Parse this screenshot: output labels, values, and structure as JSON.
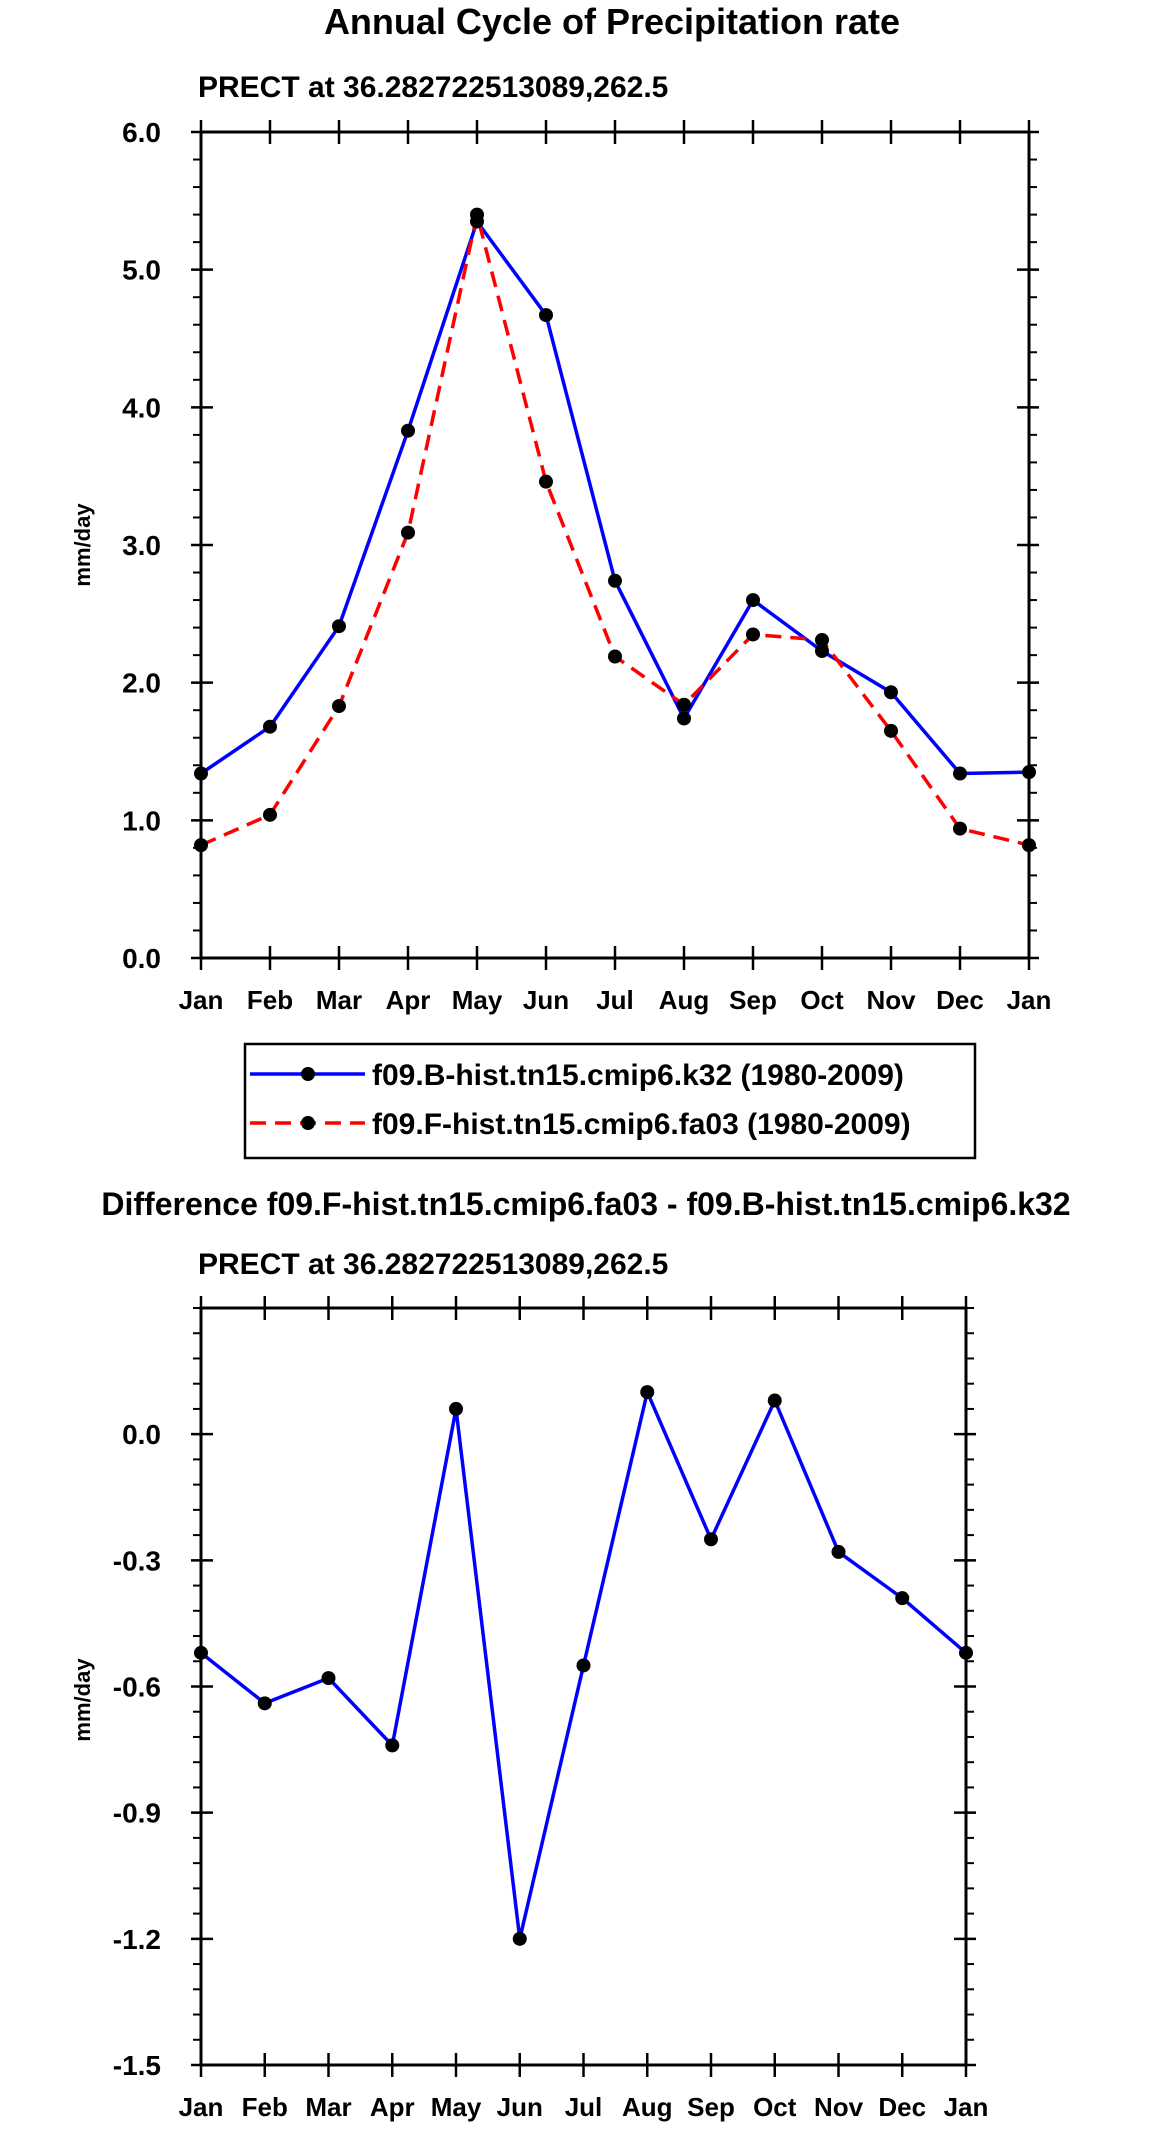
{
  "chart_data": [
    {
      "type": "line",
      "title": "Annual Cycle of Precipitation rate",
      "subtitle": "PRECT at 36.282722513089,262.5",
      "xlabel": "",
      "ylabel": "mm/day",
      "categories": [
        "Jan",
        "Feb",
        "Mar",
        "Apr",
        "May",
        "Jun",
        "Jul",
        "Aug",
        "Sep",
        "Oct",
        "Nov",
        "Dec",
        "Jan"
      ],
      "ylim": [
        0.0,
        6.0
      ],
      "yticks": [
        0.0,
        1.0,
        2.0,
        3.0,
        4.0,
        5.0,
        6.0
      ],
      "ytick_labels": [
        "0.0",
        "1.0",
        "2.0",
        "3.0",
        "4.0",
        "5.0",
        "6.0"
      ],
      "legend_position": "below",
      "series": [
        {
          "name": "f09.B-hist.tn15.cmip6.k32 (1980-2009)",
          "color": "#0000ff",
          "style": "solid",
          "values": [
            1.34,
            1.68,
            2.41,
            3.83,
            5.35,
            4.67,
            2.74,
            1.74,
            2.6,
            2.23,
            1.93,
            1.34,
            1.35
          ]
        },
        {
          "name": "f09.F-hist.tn15.cmip6.fa03 (1980-2009)",
          "color": "#ff0000",
          "style": "dashed",
          "values": [
            0.82,
            1.04,
            1.83,
            3.09,
            5.4,
            3.46,
            2.19,
            1.84,
            2.35,
            2.31,
            1.65,
            0.94,
            0.82
          ]
        }
      ]
    },
    {
      "type": "line",
      "title": "Difference f09.F-hist.tn15.cmip6.fa03 - f09.B-hist.tn15.cmip6.k32",
      "subtitle": "PRECT at 36.282722513089,262.5",
      "xlabel": "",
      "ylabel": "mm/day",
      "categories": [
        "Jan",
        "Feb",
        "Mar",
        "Apr",
        "May",
        "Jun",
        "Jul",
        "Aug",
        "Sep",
        "Oct",
        "Nov",
        "Dec",
        "Jan"
      ],
      "ylim": [
        -1.5,
        0.3
      ],
      "yticks": [
        -1.5,
        -1.2,
        -0.9,
        -0.6,
        -0.3,
        0.0
      ],
      "ytick_labels": [
        "-1.5",
        "-1.2",
        "-0.9",
        "-0.6",
        "-0.3",
        "0.0"
      ],
      "series": [
        {
          "name": "difference",
          "color": "#0000ff",
          "style": "solid",
          "values": [
            -0.52,
            -0.64,
            -0.58,
            -0.74,
            0.06,
            -1.2,
            -0.55,
            0.1,
            -0.25,
            0.08,
            -0.28,
            -0.39,
            -0.52
          ]
        }
      ]
    }
  ]
}
